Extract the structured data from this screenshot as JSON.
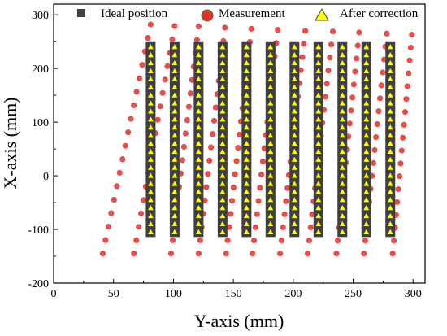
{
  "chart_data": {
    "type": "scatter",
    "xlabel": "Y-axis (mm)",
    "ylabel": "X-axis (mm)",
    "xlim": [
      0,
      310
    ],
    "ylim": [
      -200,
      320
    ],
    "xticks": [
      "0",
      "50",
      "100",
      "150",
      "200",
      "250",
      "300"
    ],
    "yticks": [
      "-200",
      "-100",
      "0",
      "100",
      "200",
      "300"
    ],
    "grid": false,
    "legend_position": "top",
    "column_x": [
      81,
      101,
      121,
      141,
      161,
      181,
      201,
      221,
      241,
      261,
      281
    ],
    "row_y": [
      240,
      225,
      210,
      195,
      180,
      165,
      150,
      135,
      120,
      105,
      90,
      75,
      60,
      45,
      30,
      15,
      0,
      -15,
      -30,
      -45,
      -60,
      -75,
      -90,
      -105
    ],
    "measurement_columns": [
      {
        "top": [
          81,
          282
        ],
        "bottom": [
          41,
          -145
        ]
      },
      {
        "top": [
          101,
          279
        ],
        "bottom": [
          67,
          -145
        ]
      },
      {
        "top": [
          121,
          278
        ],
        "bottom": [
          98,
          -145
        ]
      },
      {
        "top": [
          143,
          276
        ],
        "bottom": [
          121,
          -145
        ]
      },
      {
        "top": [
          165,
          274
        ],
        "bottom": [
          144,
          -145
        ]
      },
      {
        "top": [
          187,
          272
        ],
        "bottom": [
          166,
          -145
        ]
      },
      {
        "top": [
          210,
          270
        ],
        "bottom": [
          189,
          -145
        ]
      },
      {
        "top": [
          233,
          269
        ],
        "bottom": [
          212,
          -145
        ]
      },
      {
        "top": [
          255,
          267
        ],
        "bottom": [
          236,
          -145
        ]
      },
      {
        "top": [
          278,
          265
        ],
        "bottom": [
          259,
          -145
        ]
      },
      {
        "top": [
          299,
          263
        ],
        "bottom": [
          283,
          -145
        ]
      }
    ],
    "series": [
      {
        "name": "Ideal position",
        "marker": "square",
        "color": "#3f3f3f"
      },
      {
        "name": "Measurement",
        "marker": "circle",
        "color": "#e0302c"
      },
      {
        "name": "After correction",
        "marker": "triangle",
        "color": "#ffff00"
      }
    ]
  }
}
